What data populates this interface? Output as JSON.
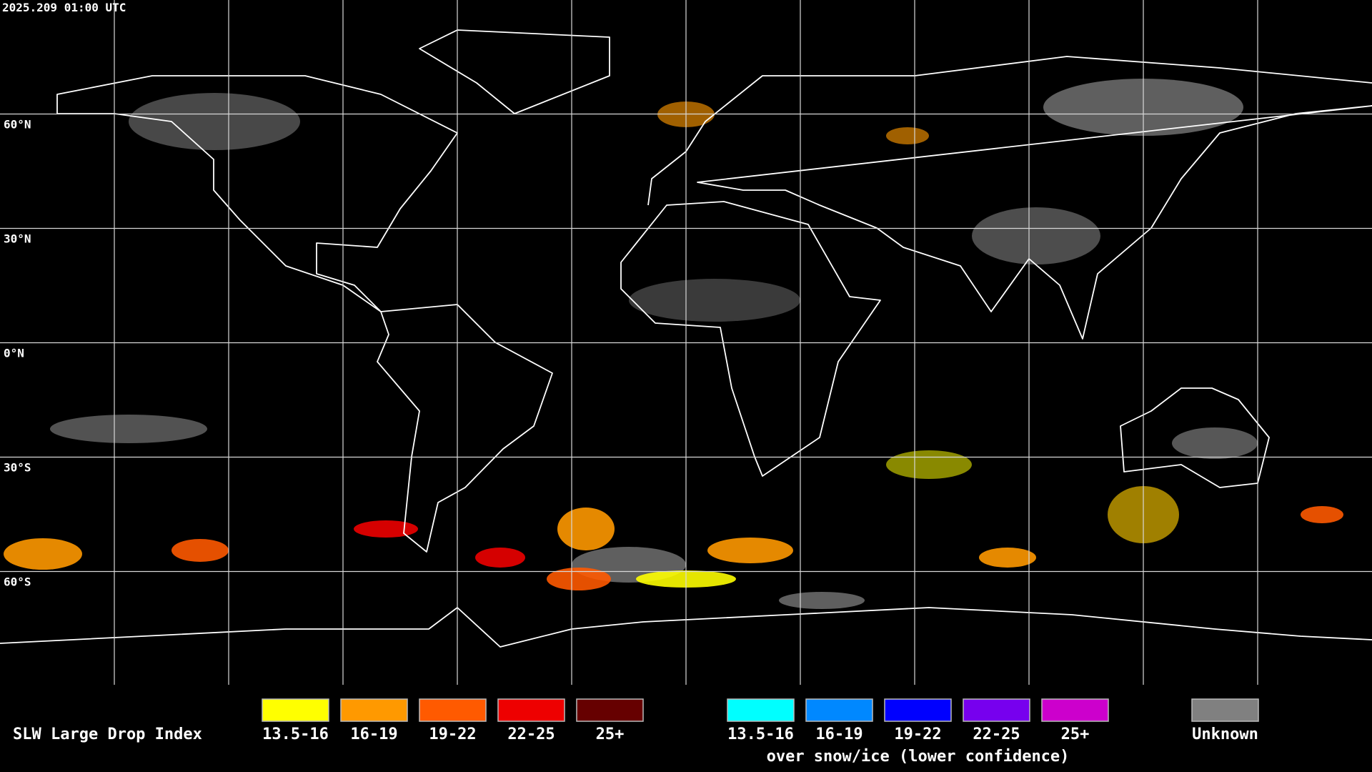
{
  "header": {
    "timestamp": "2025.209 01:00 UTC"
  },
  "map": {
    "latitude_labels": [
      "60°N",
      "30°N",
      "0°N",
      "30°S",
      "60°S"
    ]
  },
  "legend": {
    "title": "SLW Large Drop Index",
    "groups": [
      {
        "items": [
          {
            "label": "13.5-16",
            "color": "#ffff00"
          },
          {
            "label": "16-19",
            "color": "#ff9900"
          },
          {
            "label": "19-22",
            "color": "#ff5a00"
          },
          {
            "label": "22-25",
            "color": "#ee0000"
          },
          {
            "label": "25+",
            "color": "#660000"
          }
        ]
      },
      {
        "items": [
          {
            "label": "13.5-16",
            "color": "#00ffff"
          },
          {
            "label": "16-19",
            "color": "#0088ff"
          },
          {
            "label": "19-22",
            "color": "#0000ff"
          },
          {
            "label": "22-25",
            "color": "#7700ee"
          },
          {
            "label": "25+",
            "color": "#cc00cc"
          }
        ],
        "caption": "over snow/ice (lower confidence)"
      },
      {
        "items": [
          {
            "label": "Unknown",
            "color": "#808080"
          }
        ]
      }
    ]
  }
}
